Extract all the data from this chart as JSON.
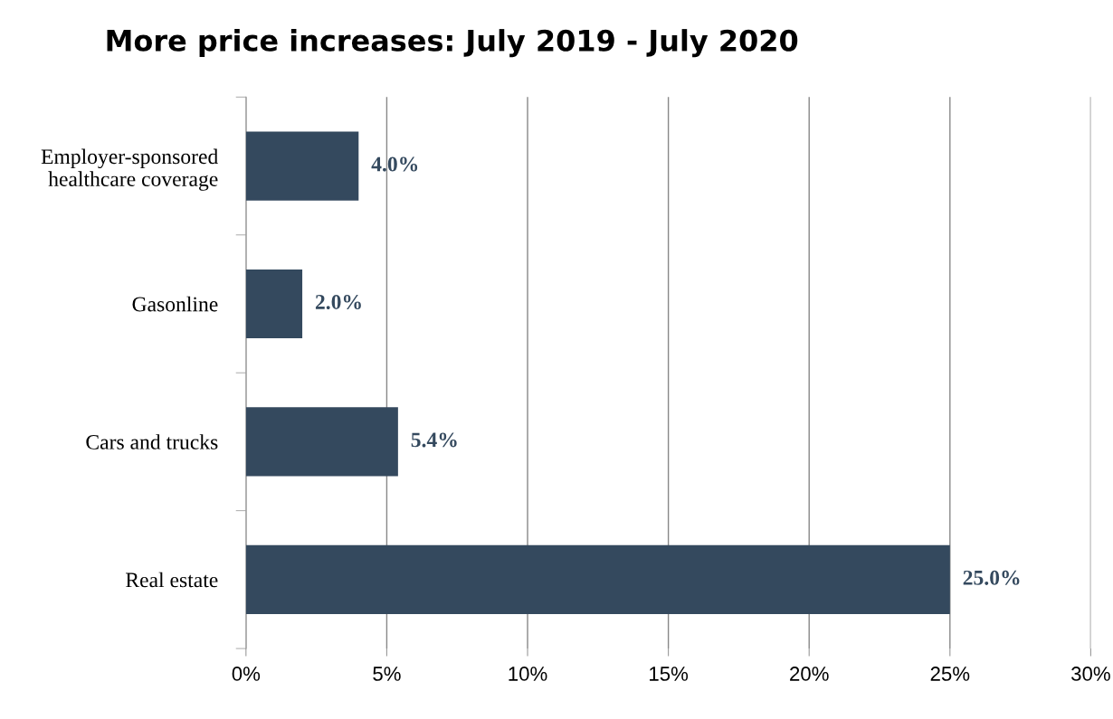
{
  "chart_data": {
    "type": "bar",
    "orientation": "horizontal",
    "title": "More price increases: July 2019 - July 2020",
    "categories": [
      "Employer-sponsored\nhealthcare coverage",
      "Gasonline",
      "Cars and trucks",
      "Real estate"
    ],
    "values": [
      4.0,
      2.0,
      5.4,
      25.0
    ],
    "color": "#34495e",
    "value_labels": [
      "4.0%",
      "2.0%",
      "5.4%",
      "25.0%"
    ],
    "xlim": [
      0,
      30
    ],
    "xticks": [
      {
        "value": 0,
        "label": "0%"
      },
      {
        "value": 5,
        "label": "5%"
      },
      {
        "value": 10,
        "label": "10%"
      },
      {
        "value": 15,
        "label": "15%"
      },
      {
        "value": 20,
        "label": "20%"
      },
      {
        "value": 25,
        "label": "25%"
      },
      {
        "value": 30,
        "label": "30%"
      }
    ],
    "grid": "x"
  }
}
